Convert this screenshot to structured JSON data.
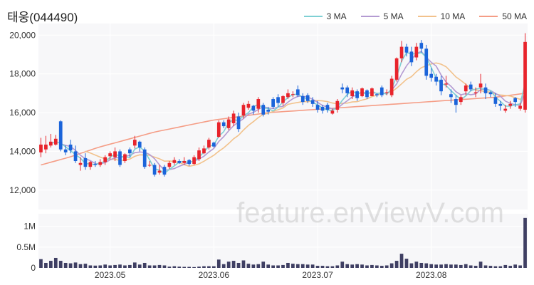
{
  "chart_data": {
    "type": "candlestick",
    "title": "태웅(044490)",
    "watermark": "feature.enViewV.com",
    "price_axis": {
      "ylim": [
        11000,
        20600
      ],
      "ticks": [
        12000,
        14000,
        16000,
        18000,
        20000
      ],
      "tick_labels": [
        "12,000",
        "14,000",
        "16,000",
        "18,000",
        "20,000"
      ]
    },
    "volume_axis": {
      "ylim": [
        0,
        1300000
      ],
      "ticks": [
        0,
        500000,
        1000000
      ],
      "tick_labels": [
        "0",
        "0.5M",
        "1M"
      ]
    },
    "x_tick_labels": [
      {
        "index": 14,
        "label": "2023.05"
      },
      {
        "index": 35,
        "label": "2023.06"
      },
      {
        "index": 56,
        "label": "2023.07"
      },
      {
        "index": 79,
        "label": "2023.08"
      }
    ],
    "grid": true,
    "up_color": "#e8242c",
    "down_color": "#1b64da",
    "volume_color": "#3f3f63",
    "legend": [
      {
        "name": "3 MA",
        "color": "#7fd0d4"
      },
      {
        "name": "5 MA",
        "color": "#b49bd2"
      },
      {
        "name": "10 MA",
        "color": "#f2c28c"
      },
      {
        "name": "50 MA",
        "color": "#f59d86"
      }
    ],
    "candles": [
      [
        13950,
        14350,
        14700,
        13700
      ],
      [
        14100,
        14350,
        14800,
        13900
      ],
      [
        14300,
        14500,
        14900,
        14200
      ],
      [
        14350,
        14650,
        14850,
        14300
      ],
      [
        15550,
        14100,
        15600,
        14000
      ],
      [
        14100,
        13950,
        14300,
        13800
      ],
      [
        14350,
        14050,
        14600,
        13900
      ],
      [
        14000,
        13500,
        14300,
        13400
      ],
      [
        13300,
        13400,
        13700,
        13000
      ],
      [
        13650,
        13200,
        13900,
        13050
      ],
      [
        13200,
        13450,
        13500,
        13050
      ],
      [
        13350,
        13300,
        13500,
        13200
      ],
      [
        13300,
        13450,
        13600,
        13200
      ],
      [
        13450,
        13700,
        13800,
        13300
      ],
      [
        13750,
        13900,
        14000,
        13600
      ],
      [
        13700,
        14000,
        14200,
        13500
      ],
      [
        14000,
        13300,
        14100,
        13200
      ],
      [
        13500,
        13850,
        13900,
        13400
      ],
      [
        14100,
        13900,
        14200,
        13700
      ],
      [
        14300,
        14600,
        14800,
        14150
      ],
      [
        14500,
        14200,
        14550,
        14000
      ],
      [
        14100,
        13200,
        14200,
        13100
      ],
      [
        13300,
        13300,
        13500,
        13200
      ],
      [
        13300,
        12800,
        13400,
        12700
      ],
      [
        12900,
        13000,
        13300,
        12800
      ],
      [
        13200,
        12800,
        13300,
        12700
      ],
      [
        13200,
        13400,
        13500,
        13100
      ],
      [
        13400,
        13550,
        13700,
        13300
      ],
      [
        13500,
        13400,
        13600,
        13350
      ],
      [
        13400,
        13500,
        13700,
        13300
      ],
      [
        13550,
        13350,
        13600,
        13250
      ],
      [
        13350,
        13700,
        13800,
        13300
      ],
      [
        13600,
        14050,
        14200,
        13500
      ],
      [
        13900,
        14150,
        14300,
        13850
      ],
      [
        14200,
        14600,
        14700,
        14100
      ],
      [
        14450,
        14250,
        14500,
        14200
      ],
      [
        14750,
        15500,
        15600,
        14700
      ],
      [
        15500,
        15300,
        15600,
        15200
      ],
      [
        15200,
        15650,
        15800,
        15100
      ],
      [
        15450,
        15950,
        16100,
        15300
      ],
      [
        15800,
        15150,
        16000,
        15000
      ],
      [
        15850,
        16400,
        16500,
        15700
      ],
      [
        16250,
        16450,
        16600,
        16150
      ],
      [
        16350,
        16100,
        16400,
        15900
      ],
      [
        16200,
        16700,
        16800,
        16000
      ],
      [
        16400,
        15900,
        16500,
        15800
      ],
      [
        16150,
        16050,
        16300,
        15900
      ],
      [
        16700,
        16300,
        16800,
        16200
      ],
      [
        16800,
        16500,
        16950,
        16300
      ],
      [
        16500,
        16850,
        16900,
        16350
      ],
      [
        16800,
        17000,
        17200,
        16700
      ],
      [
        16950,
        16950,
        17100,
        16800
      ],
      [
        17200,
        16900,
        17400,
        16800
      ],
      [
        16850,
        16550,
        17000,
        16400
      ],
      [
        16900,
        16600,
        17000,
        16500
      ],
      [
        16650,
        16450,
        16800,
        16300
      ],
      [
        16400,
        16150,
        16600,
        16000
      ],
      [
        16300,
        16100,
        16400,
        15950
      ],
      [
        16400,
        16150,
        16500,
        16000
      ],
      [
        15950,
        16100,
        16200,
        15900
      ],
      [
        16150,
        16600,
        16700,
        16000
      ],
      [
        17300,
        17200,
        17500,
        17000
      ],
      [
        17300,
        17000,
        17400,
        16800
      ],
      [
        16850,
        17150,
        17300,
        16700
      ],
      [
        17100,
        16750,
        17200,
        16600
      ],
      [
        16850,
        17250,
        17300,
        16800
      ],
      [
        17150,
        16800,
        17200,
        16700
      ],
      [
        16850,
        17250,
        17300,
        16850
      ],
      [
        16950,
        16900,
        17000,
        16800
      ],
      [
        17300,
        16900,
        17400,
        16800
      ],
      [
        17050,
        17050,
        17200,
        16900
      ],
      [
        16900,
        17750,
        17900,
        16800
      ],
      [
        17700,
        18800,
        18850,
        17600
      ],
      [
        18800,
        19400,
        19700,
        18600
      ],
      [
        19400,
        19100,
        19550,
        18900
      ],
      [
        19150,
        18600,
        19400,
        18400
      ],
      [
        18850,
        19400,
        19600,
        18700
      ],
      [
        19600,
        19300,
        19750,
        19100
      ],
      [
        19300,
        17900,
        19500,
        17700
      ],
      [
        18000,
        17800,
        18300,
        17600
      ],
      [
        17850,
        17600,
        18000,
        17400
      ],
      [
        17700,
        17100,
        17900,
        16900
      ],
      [
        17450,
        17500,
        17900,
        17300
      ],
      [
        16950,
        16800,
        17200,
        16500
      ],
      [
        16700,
        16400,
        16900,
        16000
      ],
      [
        16550,
        16800,
        16900,
        16400
      ],
      [
        17100,
        17400,
        17500,
        16900
      ],
      [
        17450,
        17200,
        17600,
        17100
      ],
      [
        17000,
        17050,
        17300,
        16800
      ],
      [
        17300,
        17500,
        18000,
        17000
      ],
      [
        17300,
        17000,
        17500,
        16700
      ],
      [
        17050,
        16950,
        17100,
        16800
      ],
      [
        16800,
        16450,
        17000,
        16300
      ],
      [
        16450,
        16350,
        16600,
        16100
      ],
      [
        16100,
        16200,
        16400,
        16000
      ],
      [
        16350,
        16450,
        16600,
        16200
      ],
      [
        16750,
        16550,
        16800,
        16300
      ],
      [
        16200,
        16350,
        16500,
        16100
      ],
      [
        16150,
        19650,
        20100,
        16000
      ]
    ],
    "volume": [
      210000,
      120000,
      170000,
      240000,
      170000,
      120000,
      110000,
      130000,
      90000,
      100000,
      60000,
      55000,
      60000,
      80000,
      60000,
      70000,
      80000,
      60000,
      70000,
      130000,
      80000,
      120000,
      60000,
      60000,
      70000,
      60000,
      30000,
      40000,
      30000,
      25000,
      25000,
      20000,
      30000,
      40000,
      40000,
      40000,
      200000,
      90000,
      150000,
      170000,
      120000,
      180000,
      100000,
      80000,
      90000,
      150000,
      80000,
      60000,
      60000,
      70000,
      120000,
      100000,
      90000,
      90000,
      80000,
      80000,
      50000,
      50000,
      40000,
      40000,
      60000,
      150000,
      90000,
      80000,
      90000,
      80000,
      60000,
      70000,
      60000,
      50000,
      60000,
      110000,
      170000,
      340000,
      220000,
      110000,
      150000,
      120000,
      110000,
      90000,
      80000,
      80000,
      90000,
      80000,
      80000,
      70000,
      90000,
      60000,
      50000,
      150000,
      60000,
      50000,
      40000,
      40000,
      70000,
      50000,
      80000,
      60000,
      1200000
    ],
    "ma": {
      "3 MA": [],
      "5 MA": [],
      "10 MA": [],
      "50 MA": [
        13300,
        13700,
        14200,
        14600,
        15000,
        15300,
        15600,
        15800,
        16000,
        16100,
        16200,
        16300,
        16400,
        16500,
        16600,
        16700,
        16800,
        17000
      ]
    }
  }
}
